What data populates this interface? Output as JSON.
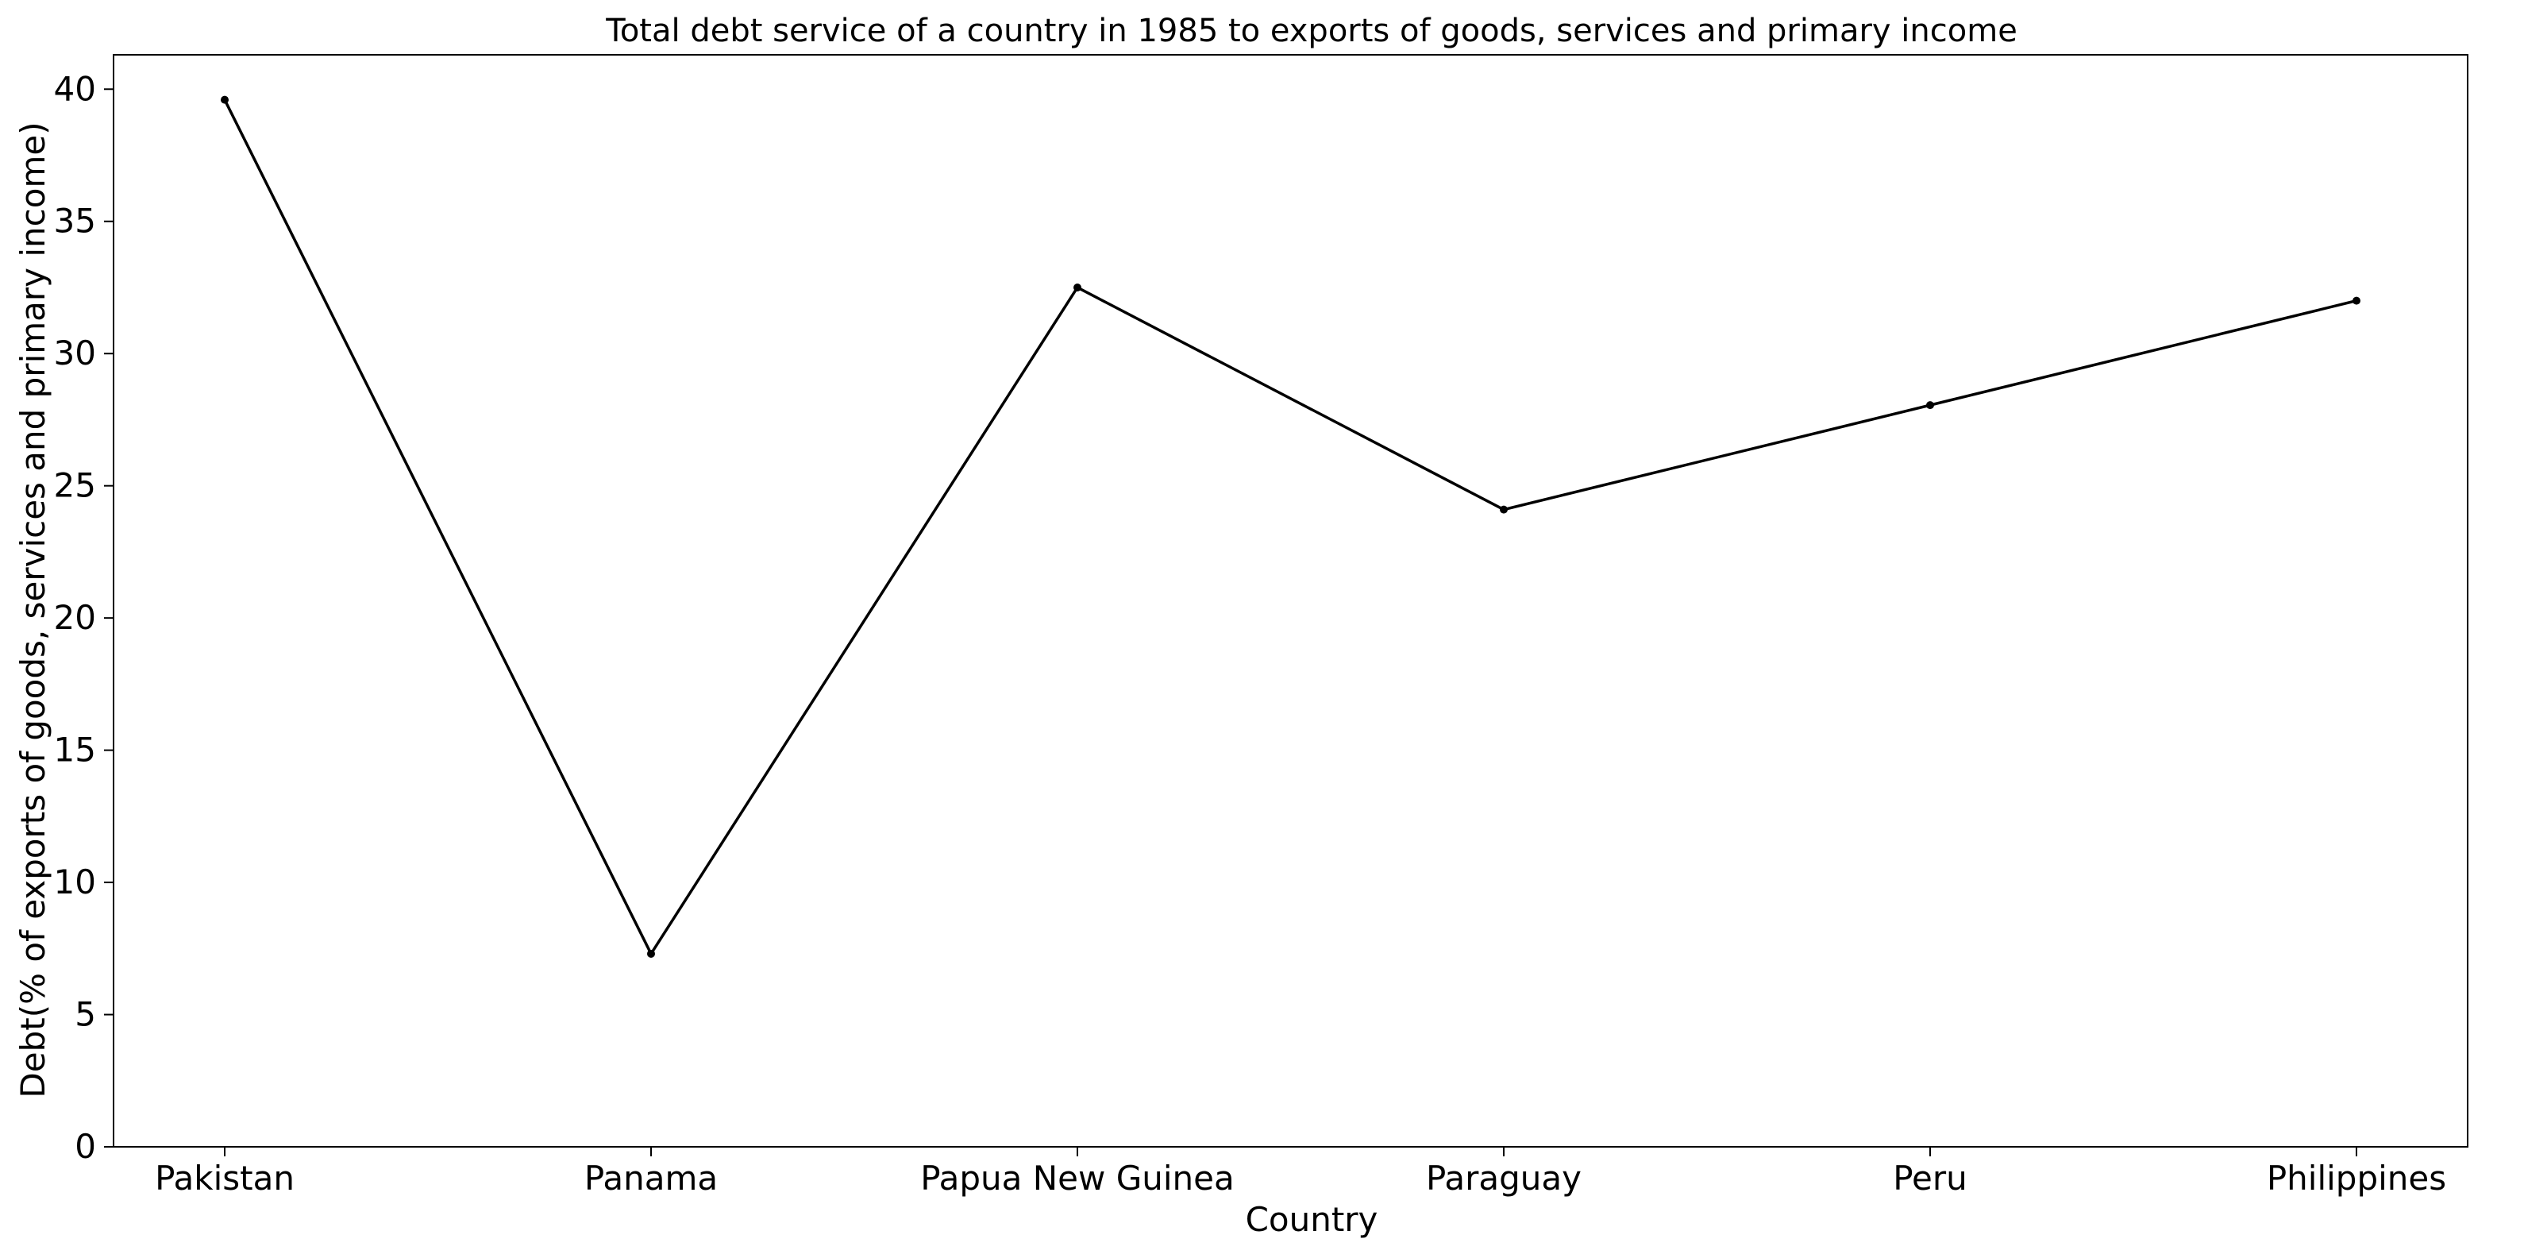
{
  "chart_data": {
    "type": "line",
    "title": "Total debt service of a country in 1985 to exports of goods, services and primary income",
    "xlabel": "Country",
    "ylabel": "Debt(% of exports of goods, services and primary income)",
    "categories": [
      "Pakistan",
      "Panama",
      "Papua New Guinea",
      "Paraguay",
      "Peru",
      "Philippines"
    ],
    "series": [
      {
        "values": [
          39.6,
          7.3,
          32.5,
          24.1,
          28.05,
          32.0
        ]
      }
    ],
    "ylim": [
      0,
      41.3
    ],
    "yticks": [
      0,
      5,
      10,
      15,
      20,
      25,
      30,
      35,
      40
    ],
    "grid": false,
    "legend": "none",
    "colors": {
      "line": "#000000",
      "marker": "#000000",
      "axes": "#000000"
    }
  }
}
